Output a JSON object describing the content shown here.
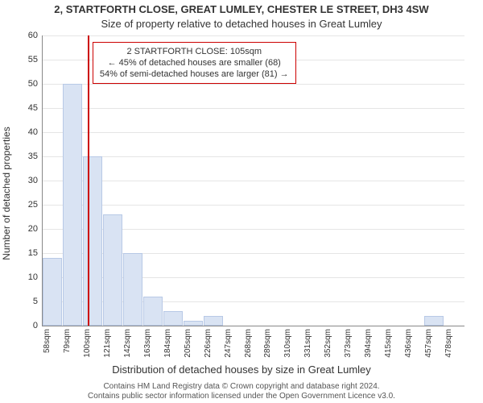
{
  "title": "2, STARTFORTH CLOSE, GREAT LUMLEY, CHESTER LE STREET, DH3 4SW",
  "subtitle": "Size of property relative to detached houses in Great Lumley",
  "ylabel": "Number of detached properties",
  "xlabel": "Distribution of detached houses by size in Great Lumley",
  "footer_line1": "Contains HM Land Registry data © Crown copyright and database right 2024.",
  "footer_line2": "Contains public sector information licensed under the Open Government Licence v3.0.",
  "chart": {
    "type": "histogram",
    "background_color": "#ffffff",
    "grid_color": "#e5e5e5",
    "axis_color": "#888888",
    "bar_fill": "#d9e3f3",
    "bar_stroke": "#b8c9e6",
    "refline_color": "#cc0000",
    "callout_border": "#cc0000",
    "ylim": [
      0,
      60
    ],
    "ytick_step": 5,
    "bin_start": 58,
    "bin_width": 21,
    "bin_count": 21,
    "ytick_fontsize": 11,
    "xtick_fontsize": 10,
    "label_fontsize": 12,
    "title_fontsize": 13,
    "values": [
      14,
      50,
      35,
      23,
      15,
      6,
      3,
      1,
      2,
      0,
      0,
      0,
      0,
      0,
      0,
      0,
      0,
      0,
      0,
      2,
      0
    ],
    "reference_value": 105,
    "callout": {
      "line1": "2 STARTFORTH CLOSE: 105sqm",
      "line2": "← 45% of detached houses are smaller (68)",
      "line3": "54% of semi-detached houses are larger (81) →"
    },
    "xunit": "sqm"
  }
}
